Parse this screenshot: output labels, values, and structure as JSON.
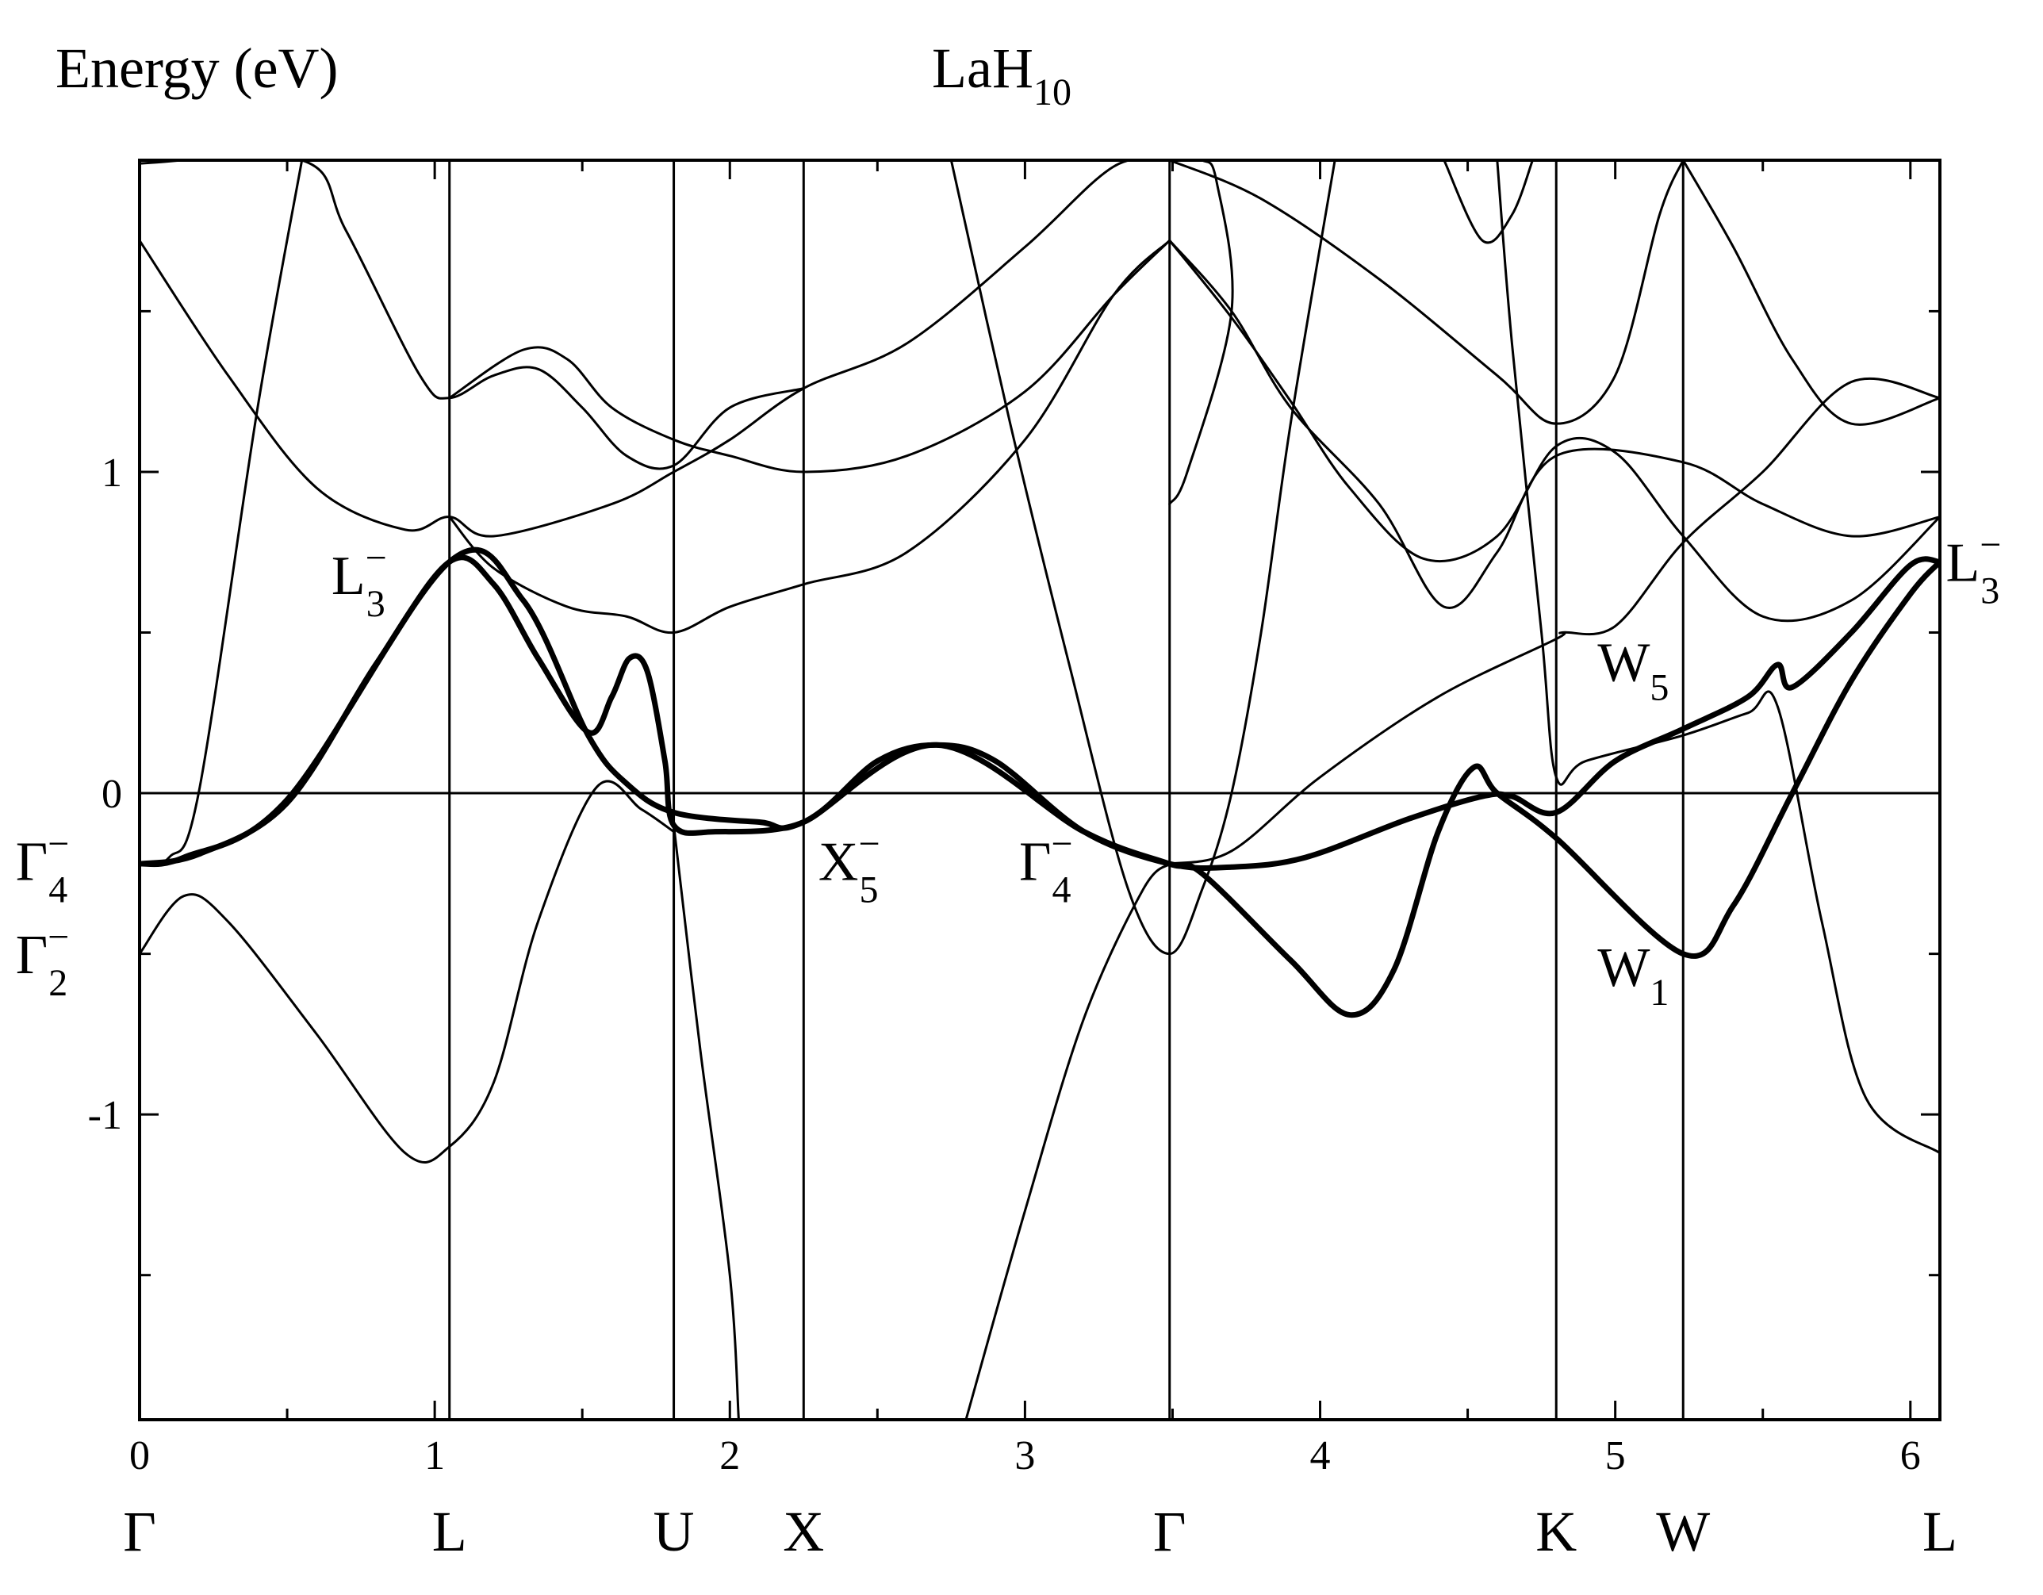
{
  "chart_data": {
    "type": "line",
    "title_main": "LaH",
    "title_sub": "10",
    "ylabel": "Energy (eV)",
    "xlim": [
      0,
      6.1
    ],
    "ylim": [
      -1.95,
      1.97
    ],
    "grid": false,
    "legend": "none",
    "x_ticks": [
      {
        "value": 0,
        "label": "0"
      },
      {
        "value": 1,
        "label": "1"
      },
      {
        "value": 2,
        "label": "2"
      },
      {
        "value": 3,
        "label": "3"
      },
      {
        "value": 4,
        "label": "4"
      },
      {
        "value": 5,
        "label": "5"
      },
      {
        "value": 6,
        "label": "6"
      }
    ],
    "y_ticks": [
      {
        "value": -1,
        "label": "-1"
      },
      {
        "value": 0,
        "label": "0"
      },
      {
        "value": 1,
        "label": "1"
      }
    ],
    "y_minor_ticks": [
      -1.5,
      -0.5,
      0.5,
      1.5
    ],
    "x_minor_ticks": [
      0.5,
      1.5,
      2.5,
      3.5,
      4.5,
      5.5
    ],
    "fermi_level": 0,
    "high_symmetry_points": [
      {
        "label": "Γ",
        "x": 0
      },
      {
        "label": "L",
        "x": 1.05
      },
      {
        "label": "U",
        "x": 1.81
      },
      {
        "label": "X",
        "x": 2.25
      },
      {
        "label": "Γ",
        "x": 3.49
      },
      {
        "label": "K",
        "x": 4.8
      },
      {
        "label": "W",
        "x": 5.23
      },
      {
        "label": "L",
        "x": 6.1
      }
    ],
    "annotations": [
      {
        "base": "L",
        "sub": "3",
        "sup": "−",
        "x": 0.65,
        "y": 0.62
      },
      {
        "base": "Γ",
        "sub": "4",
        "sup": "−",
        "x": -0.42,
        "y": -0.27
      },
      {
        "base": "Γ",
        "sub": "2",
        "sup": "−",
        "x": -0.42,
        "y": -0.56
      },
      {
        "base": "X",
        "sub": "5",
        "sup": "−",
        "x": 2.3,
        "y": -0.27
      },
      {
        "base": "Γ",
        "sub": "4",
        "sup": "−",
        "x": 2.98,
        "y": -0.27
      },
      {
        "base": "W",
        "sub": "5",
        "sup": "",
        "x": 4.94,
        "y": 0.35
      },
      {
        "base": "W",
        "sub": "1",
        "sup": "",
        "x": 4.94,
        "y": -0.6
      },
      {
        "base": "L",
        "sub": "3",
        "sup": "−",
        "x": 6.12,
        "y": 0.66
      }
    ],
    "bands": [
      {
        "width": "thick",
        "points": [
          [
            0,
            -0.22
          ],
          [
            0.2,
            -0.19
          ],
          [
            0.5,
            -0.03
          ],
          [
            0.8,
            0.4
          ],
          [
            1.05,
            0.72
          ],
          [
            1.2,
            0.65
          ],
          [
            1.35,
            0.42
          ],
          [
            1.52,
            0.19
          ],
          [
            1.6,
            0.3
          ],
          [
            1.66,
            0.42
          ],
          [
            1.72,
            0.38
          ],
          [
            1.78,
            0.1
          ],
          [
            1.81,
            -0.1
          ],
          [
            1.95,
            -0.12
          ],
          [
            2.25,
            -0.09
          ],
          [
            2.5,
            0.1
          ],
          [
            2.7,
            0.15
          ],
          [
            2.9,
            0.1
          ],
          [
            3.2,
            -0.12
          ],
          [
            3.49,
            -0.22
          ],
          [
            3.7,
            -0.23
          ],
          [
            3.95,
            -0.2
          ],
          [
            4.3,
            -0.08
          ],
          [
            4.55,
            -0.01
          ],
          [
            4.65,
            -0.01
          ],
          [
            4.8,
            -0.06
          ],
          [
            5.0,
            0.1
          ],
          [
            5.23,
            0.2
          ],
          [
            5.45,
            0.3
          ],
          [
            5.55,
            0.4
          ],
          [
            5.6,
            0.33
          ],
          [
            5.8,
            0.5
          ],
          [
            6.0,
            0.71
          ],
          [
            6.1,
            0.72
          ]
        ]
      },
      {
        "width": "thick",
        "points": [
          [
            0,
            -0.22
          ],
          [
            0.15,
            -0.2
          ],
          [
            0.5,
            -0.02
          ],
          [
            1.05,
            0.72
          ],
          [
            1.3,
            0.6
          ],
          [
            1.52,
            0.18
          ],
          [
            1.65,
            0.03
          ],
          [
            1.81,
            -0.06
          ],
          [
            2.1,
            -0.09
          ],
          [
            2.25,
            -0.09
          ],
          [
            2.7,
            0.15
          ],
          [
            3.2,
            -0.12
          ],
          [
            3.49,
            -0.22
          ],
          [
            3.6,
            -0.25
          ],
          [
            3.9,
            -0.52
          ],
          [
            4.1,
            -0.69
          ],
          [
            4.25,
            -0.55
          ],
          [
            4.4,
            -0.12
          ],
          [
            4.52,
            0.08
          ],
          [
            4.6,
            0.0
          ],
          [
            4.8,
            -0.14
          ],
          [
            5.23,
            -0.5
          ],
          [
            5.4,
            -0.35
          ],
          [
            5.6,
            0.0
          ],
          [
            5.8,
            0.35
          ],
          [
            6.0,
            0.62
          ],
          [
            6.1,
            0.72
          ]
        ]
      },
      {
        "width": "thin",
        "points": [
          [
            0,
            -0.5
          ],
          [
            0.15,
            -0.32
          ],
          [
            0.3,
            -0.4
          ],
          [
            0.6,
            -0.75
          ],
          [
            0.9,
            -1.12
          ],
          [
            1.05,
            -1.1
          ],
          [
            1.2,
            -0.9
          ],
          [
            1.35,
            -0.4
          ],
          [
            1.55,
            0.02
          ],
          [
            1.7,
            -0.05
          ],
          [
            1.81,
            -0.12
          ]
        ]
      },
      {
        "width": "thin",
        "points": [
          [
            0,
            -0.22
          ],
          [
            0.1,
            -0.2
          ],
          [
            0.2,
            0.0
          ],
          [
            0.4,
            1.2
          ],
          [
            0.55,
            1.97
          ]
        ]
      },
      {
        "width": "thin",
        "points": [
          [
            0,
            1.72
          ],
          [
            0.3,
            1.3
          ],
          [
            0.6,
            0.95
          ],
          [
            0.9,
            0.82
          ],
          [
            1.05,
            0.86
          ],
          [
            1.2,
            0.8
          ],
          [
            1.6,
            0.9
          ],
          [
            1.81,
            1.0
          ],
          [
            2.0,
            1.1
          ],
          [
            2.25,
            1.26
          ],
          [
            2.6,
            1.4
          ],
          [
            3.0,
            1.7
          ],
          [
            3.3,
            1.95
          ],
          [
            3.49,
            1.97
          ]
        ]
      },
      {
        "width": "thin",
        "points": [
          [
            0,
            1.96
          ],
          [
            0.55,
            1.97
          ],
          [
            0.7,
            1.75
          ],
          [
            0.95,
            1.3
          ],
          [
            1.05,
            1.23
          ],
          [
            1.2,
            1.3
          ],
          [
            1.35,
            1.32
          ],
          [
            1.5,
            1.2
          ],
          [
            1.65,
            1.05
          ],
          [
            1.81,
            1.02
          ],
          [
            2.0,
            1.2
          ],
          [
            2.25,
            1.26
          ]
        ]
      },
      {
        "width": "thin",
        "points": [
          [
            1.05,
            1.23
          ],
          [
            1.3,
            1.38
          ],
          [
            1.45,
            1.35
          ],
          [
            1.6,
            1.2
          ],
          [
            1.81,
            1.1
          ],
          [
            2.0,
            1.05
          ],
          [
            2.25,
            1.0
          ],
          [
            2.6,
            1.05
          ],
          [
            3.0,
            1.25
          ],
          [
            3.3,
            1.55
          ],
          [
            3.49,
            1.72
          ]
        ]
      },
      {
        "width": "thin",
        "points": [
          [
            1.05,
            0.86
          ],
          [
            1.2,
            0.7
          ],
          [
            1.45,
            0.58
          ],
          [
            1.65,
            0.55
          ],
          [
            1.81,
            0.5
          ],
          [
            2.0,
            0.58
          ],
          [
            2.25,
            0.65
          ],
          [
            2.6,
            0.75
          ],
          [
            3.0,
            1.1
          ],
          [
            3.3,
            1.55
          ],
          [
            3.49,
            1.72
          ]
        ]
      },
      {
        "width": "thin",
        "points": [
          [
            3.49,
            1.72
          ],
          [
            3.7,
            1.5
          ],
          [
            3.9,
            1.2
          ],
          [
            4.2,
            0.9
          ],
          [
            4.42,
            0.58
          ],
          [
            4.6,
            0.75
          ],
          [
            4.8,
            1.05
          ],
          [
            5.23,
            1.03
          ],
          [
            5.5,
            0.9
          ],
          [
            5.8,
            0.8
          ],
          [
            6.1,
            0.86
          ]
        ]
      },
      {
        "width": "thin",
        "points": [
          [
            3.49,
            1.72
          ],
          [
            3.7,
            1.48
          ],
          [
            3.9,
            1.22
          ],
          [
            4.1,
            0.95
          ],
          [
            4.35,
            0.73
          ],
          [
            4.6,
            0.8
          ],
          [
            4.8,
            1.08
          ],
          [
            5.0,
            1.06
          ],
          [
            5.23,
            0.8
          ],
          [
            5.5,
            0.55
          ],
          [
            5.8,
            0.6
          ],
          [
            6.1,
            0.86
          ]
        ]
      },
      {
        "width": "thin",
        "points": [
          [
            3.49,
            1.97
          ],
          [
            3.8,
            1.85
          ],
          [
            4.2,
            1.6
          ],
          [
            4.6,
            1.3
          ],
          [
            4.8,
            1.15
          ],
          [
            5.0,
            1.3
          ],
          [
            5.15,
            1.8
          ],
          [
            5.23,
            1.97
          ]
        ]
      },
      {
        "width": "thin",
        "points": [
          [
            4.42,
            1.97
          ],
          [
            4.55,
            1.72
          ],
          [
            4.65,
            1.8
          ],
          [
            4.72,
            1.97
          ]
        ]
      },
      {
        "width": "thin",
        "points": [
          [
            3.49,
            -0.22
          ],
          [
            3.7,
            -0.18
          ],
          [
            4.0,
            0.05
          ],
          [
            4.4,
            0.3
          ],
          [
            4.8,
            0.48
          ],
          [
            4.82,
            0.5
          ],
          [
            5.0,
            0.52
          ],
          [
            5.23,
            0.78
          ],
          [
            5.5,
            1.0
          ],
          [
            5.8,
            1.28
          ],
          [
            6.1,
            1.23
          ]
        ]
      },
      {
        "width": "thin",
        "points": [
          [
            2.75,
            1.97
          ],
          [
            2.95,
            1.15
          ],
          [
            3.15,
            0.4
          ],
          [
            3.35,
            -0.3
          ],
          [
            3.49,
            -0.5
          ],
          [
            3.6,
            -0.3
          ],
          [
            3.7,
            0.0
          ],
          [
            3.8,
            0.5
          ],
          [
            3.9,
            1.15
          ],
          [
            4.05,
            1.97
          ]
        ]
      },
      {
        "width": "thin",
        "points": [
          [
            3.49,
            1.97
          ],
          [
            3.6,
            1.97
          ],
          [
            3.65,
            1.9
          ],
          [
            3.7,
            1.5
          ],
          [
            3.55,
            1.0
          ],
          [
            3.49,
            0.9
          ]
        ]
      },
      {
        "width": "thin",
        "points": [
          [
            4.6,
            1.97
          ],
          [
            4.65,
            1.4
          ],
          [
            4.75,
            0.5
          ],
          [
            4.8,
            0.05
          ],
          [
            4.9,
            0.1
          ],
          [
            5.23,
            0.18
          ],
          [
            5.45,
            0.25
          ],
          [
            5.55,
            0.27
          ],
          [
            5.7,
            -0.4
          ],
          [
            5.85,
            -0.95
          ],
          [
            6.1,
            -1.12
          ]
        ]
      },
      {
        "width": "thin",
        "points": [
          [
            5.23,
            1.97
          ],
          [
            5.4,
            1.7
          ],
          [
            5.6,
            1.35
          ],
          [
            5.8,
            1.15
          ],
          [
            6.1,
            1.23
          ]
        ]
      },
      {
        "width": "thin",
        "points": [
          [
            1.81,
            -0.1
          ],
          [
            1.9,
            -0.8
          ],
          [
            2.0,
            -1.5
          ],
          [
            2.03,
            -1.95
          ]
        ]
      },
      {
        "width": "thin",
        "points": [
          [
            2.8,
            -1.95
          ],
          [
            3.0,
            -1.3
          ],
          [
            3.2,
            -0.7
          ],
          [
            3.4,
            -0.3
          ],
          [
            3.49,
            -0.22
          ]
        ]
      }
    ]
  }
}
